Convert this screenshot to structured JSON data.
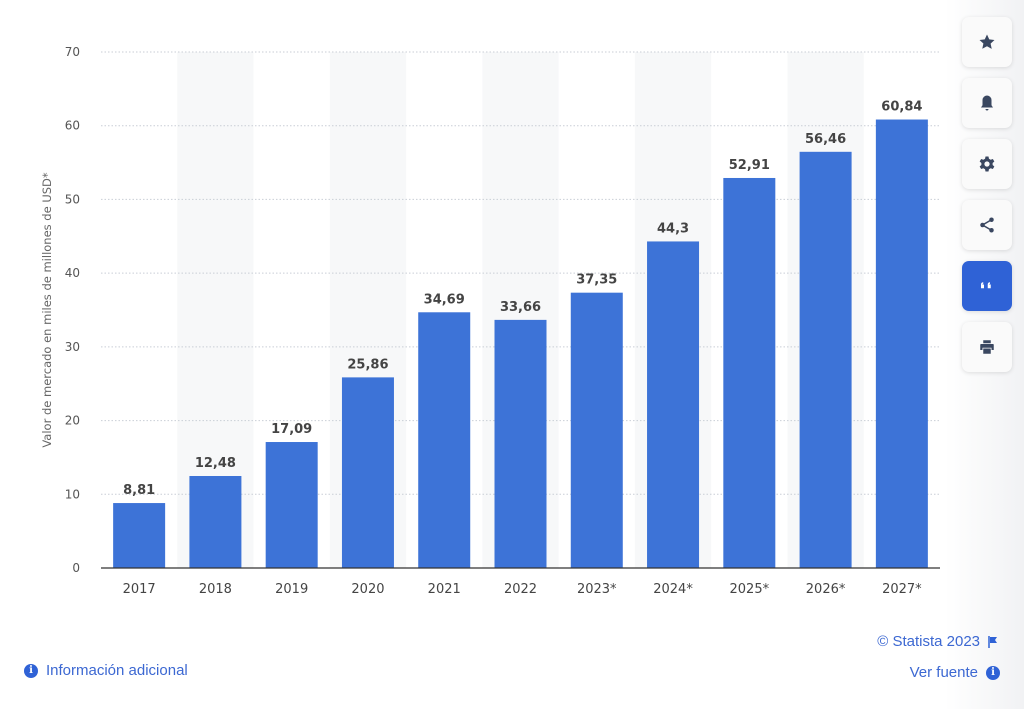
{
  "chart_data": {
    "type": "bar",
    "categories": [
      "2017",
      "2018",
      "2019",
      "2020",
      "2021",
      "2022",
      "2023*",
      "2024*",
      "2025*",
      "2026*",
      "2027*"
    ],
    "values": [
      8.81,
      12.48,
      17.09,
      25.86,
      34.69,
      33.66,
      37.35,
      44.3,
      52.91,
      56.46,
      60.84
    ],
    "value_labels": [
      "8,81",
      "12,48",
      "17,09",
      "25,86",
      "34,69",
      "33,66",
      "37,35",
      "44,3",
      "52,91",
      "56,46",
      "60,84"
    ],
    "ylabel": "Valor de mercado en miles de millones de USD*",
    "ylim": [
      0,
      70
    ],
    "yticks": [
      0,
      10,
      20,
      30,
      40,
      50,
      60,
      70
    ],
    "grid": true,
    "bar_color": "#3d73d7"
  },
  "toolbar": {
    "buttons": [
      {
        "icon": "star-icon"
      },
      {
        "icon": "bell-icon"
      },
      {
        "icon": "gear-icon"
      },
      {
        "icon": "share-icon"
      },
      {
        "icon": "quote-icon",
        "active": true
      },
      {
        "icon": "print-icon"
      }
    ]
  },
  "footer": {
    "copyright": "© Statista 2023",
    "info_label": "Información adicional",
    "source_label": "Ver fuente"
  }
}
